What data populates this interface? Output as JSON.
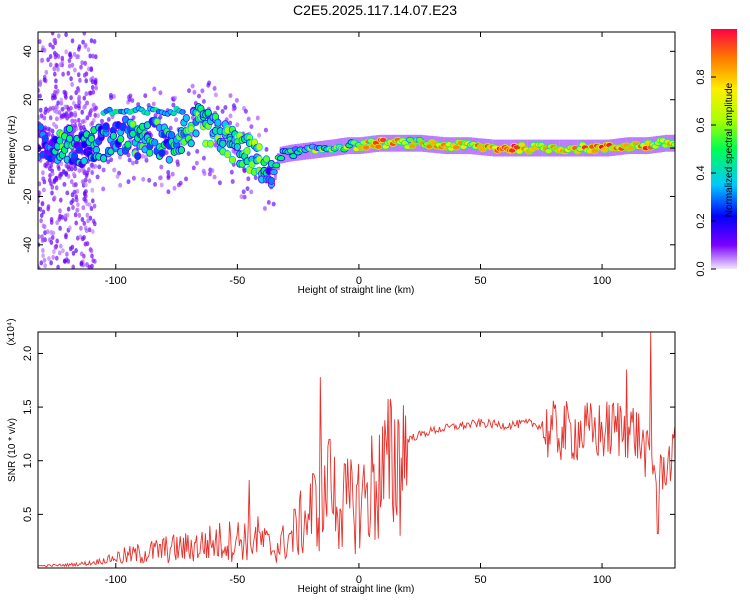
{
  "title": "C2E5.2025.117.14.07.E23",
  "colors": {
    "snr_line": "#e8302a",
    "frame": "#000000",
    "blob_low": "#c9a8f2",
    "blob_mid": "#6a00d8"
  },
  "chart_data": [
    {
      "type": "heatmap",
      "xlabel": "Height of straight line (km)",
      "ylabel": "Frequency (Hz)",
      "xlim": [
        -132,
        130
      ],
      "ylim": [
        -50,
        48
      ],
      "xticks": [
        -100,
        -50,
        0,
        50,
        100
      ],
      "yticks": [
        -40,
        -20,
        0,
        20,
        40
      ],
      "colorbar": {
        "label": "Normalized spectral amplitude",
        "range": [
          0,
          1
        ],
        "ticks": [
          "0.0",
          "0.2",
          "0.4",
          "0.6",
          "0.8"
        ],
        "colormap": "rainbow"
      },
      "ridge": [
        {
          "x": -128,
          "f": 2,
          "a": 0.2
        },
        {
          "x": -122,
          "f": 2,
          "a": 0.45
        },
        {
          "x": -115,
          "f": 0,
          "a": 0.3
        },
        {
          "x": -108,
          "f": 2,
          "a": 0.35
        },
        {
          "x": -102,
          "f": 3,
          "a": 0.3
        },
        {
          "x": -96,
          "f": 5,
          "a": 0.45
        },
        {
          "x": -90,
          "f": 2,
          "a": 0.4
        },
        {
          "x": -84,
          "f": 5,
          "a": 0.42
        },
        {
          "x": -78,
          "f": 1,
          "a": 0.35
        },
        {
          "x": -72,
          "f": 6,
          "a": 0.4
        },
        {
          "x": -66,
          "f": 10,
          "a": 0.5
        },
        {
          "x": -60,
          "f": 7,
          "a": 0.52
        },
        {
          "x": -54,
          "f": 3,
          "a": 0.48
        },
        {
          "x": -48,
          "f": -1,
          "a": 0.5
        },
        {
          "x": -44,
          "f": -3,
          "a": 0.5
        },
        {
          "x": -40,
          "f": -7,
          "a": 0.5
        },
        {
          "x": -36,
          "f": -13,
          "a": 0.3
        },
        {
          "x": -33,
          "f": -3,
          "a": 0.4
        },
        {
          "x": -28,
          "f": -2,
          "a": 0.45
        },
        {
          "x": -20,
          "f": -1,
          "a": 0.5
        },
        {
          "x": -12,
          "f": 0,
          "a": 0.55
        },
        {
          "x": -5,
          "f": 1,
          "a": 0.6
        },
        {
          "x": 0,
          "f": 1,
          "a": 0.65
        },
        {
          "x": 8,
          "f": 2,
          "a": 0.85
        },
        {
          "x": 16,
          "f": 2,
          "a": 0.75
        },
        {
          "x": 25,
          "f": 2,
          "a": 0.7
        },
        {
          "x": 35,
          "f": 1,
          "a": 0.72
        },
        {
          "x": 45,
          "f": 1,
          "a": 0.75
        },
        {
          "x": 55,
          "f": 0,
          "a": 0.8
        },
        {
          "x": 62,
          "f": 0,
          "a": 0.95
        },
        {
          "x": 70,
          "f": 0,
          "a": 0.85
        },
        {
          "x": 78,
          "f": 0,
          "a": 0.8
        },
        {
          "x": 86,
          "f": 0,
          "a": 0.78
        },
        {
          "x": 94,
          "f": 0,
          "a": 0.8
        },
        {
          "x": 102,
          "f": 0,
          "a": 0.85
        },
        {
          "x": 110,
          "f": 1,
          "a": 0.75
        },
        {
          "x": 118,
          "f": 1,
          "a": 0.85
        },
        {
          "x": 126,
          "f": 2,
          "a": 0.75
        }
      ]
    },
    {
      "type": "line",
      "xlabel": "Height of straight line (km)",
      "ylabel": "SNR (10 * v/v)",
      "y_multiplier": "(x10⁴)",
      "xlim": [
        -132,
        130
      ],
      "ylim": [
        0,
        2.2
      ],
      "xticks": [
        -100,
        -50,
        0,
        50,
        100
      ],
      "yticks": [
        0.5,
        1.0,
        1.5,
        2.0
      ],
      "ytick_labels": [
        "0.5",
        "1.0",
        "1.5",
        "2.0"
      ],
      "series": [
        {
          "envelope": [
            {
              "x": -132,
              "y": 0.02
            },
            {
              "x": -120,
              "y": 0.03
            },
            {
              "x": -110,
              "y": 0.05
            },
            {
              "x": -100,
              "y": 0.1
            },
            {
              "x": -90,
              "y": 0.14
            },
            {
              "x": -80,
              "y": 0.18
            },
            {
              "x": -70,
              "y": 0.2
            },
            {
              "x": -60,
              "y": 0.25
            },
            {
              "x": -50,
              "y": 0.28
            },
            {
              "x": -42,
              "y": 0.3
            },
            {
              "x": -35,
              "y": 0.18
            },
            {
              "x": -28,
              "y": 0.3
            },
            {
              "x": -20,
              "y": 0.55
            },
            {
              "x": -12,
              "y": 0.75
            },
            {
              "x": -5,
              "y": 0.6
            },
            {
              "x": 0,
              "y": 0.65
            },
            {
              "x": 10,
              "y": 0.9
            },
            {
              "x": 20,
              "y": 1.2
            },
            {
              "x": 30,
              "y": 1.28
            },
            {
              "x": 40,
              "y": 1.32
            },
            {
              "x": 50,
              "y": 1.35
            },
            {
              "x": 60,
              "y": 1.33
            },
            {
              "x": 70,
              "y": 1.35
            },
            {
              "x": 80,
              "y": 1.3
            },
            {
              "x": 90,
              "y": 1.3
            },
            {
              "x": 100,
              "y": 1.3
            },
            {
              "x": 108,
              "y": 1.35
            },
            {
              "x": 114,
              "y": 1.3
            },
            {
              "x": 120,
              "y": 1.0
            },
            {
              "x": 124,
              "y": 0.9
            },
            {
              "x": 130,
              "y": 1.1
            }
          ],
          "spikes": [
            {
              "x": -45,
              "y": 0.82
            },
            {
              "x": -16,
              "y": 1.78
            },
            {
              "x": -12,
              "y": 1.2
            },
            {
              "x": 110,
              "y": 1.85
            },
            {
              "x": 120,
              "y": 2.2
            },
            {
              "x": 123,
              "y": 0.32
            }
          ]
        }
      ]
    }
  ]
}
